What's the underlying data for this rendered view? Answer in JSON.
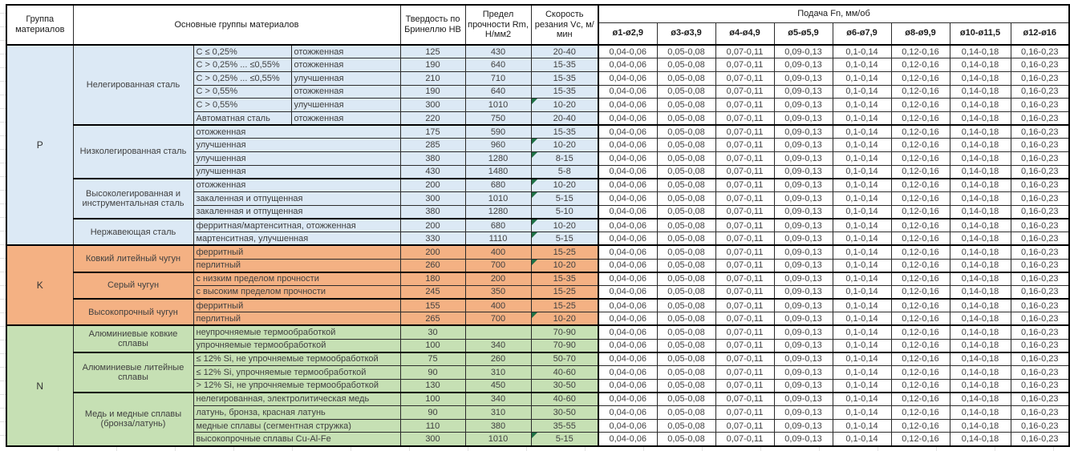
{
  "colors": {
    "group_p": "#dce9f5",
    "group_k": "#f4b183",
    "group_n": "#c6e0b4",
    "note_marker": "#1e7145"
  },
  "table": {
    "header": {
      "group": "Группа материалов",
      "materials": "Основные группы материалов",
      "hardness": "Твердость по Бринеллю HB",
      "strength": "Предел прочности Rm, Н/мм2",
      "speed": "Скорость резания Vc, м/мин",
      "feed": "Подача Fn, мм/об",
      "feed_cols": [
        "ø1-ø2,9",
        "ø3-ø3,9",
        "ø4-ø4,9",
        "ø5-ø5,9",
        "ø6-ø7,9",
        "ø8-ø9,9",
        "ø10-ø11,5",
        "ø12-ø16"
      ]
    },
    "feed_values": [
      "0,04-0,06",
      "0,05-0,08",
      "0,07-0,11",
      "0,09-0,13",
      "0,1-0,14",
      "0,12-0,16",
      "0,14-0,18",
      "0,16-0,23"
    ],
    "groups": [
      {
        "letter": "P",
        "color": "#dce9f5",
        "families": [
          {
            "name": "Нелегированная сталь",
            "rows": [
              {
                "spec": "C ≤ 0,25%",
                "state": "отожженная",
                "hb": "125",
                "rm": "430",
                "vc": "20-40",
                "note": false
              },
              {
                "spec": "C > 0,25% ... ≤0,55%",
                "state": "отожженная",
                "hb": "190",
                "rm": "640",
                "vc": "15-35",
                "note": false
              },
              {
                "spec": "C > 0,25% ... ≤0,55%",
                "state": "улучшенная",
                "hb": "210",
                "rm": "710",
                "vc": "15-35",
                "note": false
              },
              {
                "spec": "C > 0,55%",
                "state": "отожженная",
                "hb": "190",
                "rm": "640",
                "vc": "15-35",
                "note": false
              },
              {
                "spec": "C > 0,55%",
                "state": "улучшенная",
                "hb": "300",
                "rm": "1010",
                "vc": "10-20",
                "note": true
              },
              {
                "spec": "Автоматная сталь",
                "state": "отожженная",
                "hb": "220",
                "rm": "750",
                "vc": "20-40",
                "note": false
              }
            ]
          },
          {
            "name": "Низколегированная сталь",
            "rows": [
              {
                "spec": "отожженная",
                "hb": "175",
                "rm": "590",
                "vc": "15-35",
                "note": false
              },
              {
                "spec": "улучшенная",
                "hb": "285",
                "rm": "960",
                "vc": "10-20",
                "note": true
              },
              {
                "spec": "улучшенная",
                "hb": "380",
                "rm": "1280",
                "vc": "8-15",
                "note": true
              },
              {
                "spec": "улучшенная",
                "hb": "430",
                "rm": "1480",
                "vc": "5-8",
                "note": false
              }
            ]
          },
          {
            "name": "Высоколегированная и инструментальная сталь",
            "rows": [
              {
                "spec": "отожженная",
                "hb": "200",
                "rm": "680",
                "vc": "10-20",
                "note": true
              },
              {
                "spec": "закаленная и отпущенная",
                "hb": "300",
                "rm": "1010",
                "vc": "5-15",
                "note": true
              },
              {
                "spec": "закаленная и отпущенная",
                "hb": "380",
                "rm": "1280",
                "vc": "5-10",
                "note": false
              }
            ]
          },
          {
            "name": "Нержавеющая сталь",
            "rows": [
              {
                "spec": "ферритная/мартенситная, отожженная",
                "hb": "200",
                "rm": "680",
                "vc": "10-20",
                "note": true
              },
              {
                "spec": "мартенситная, улучшенная",
                "hb": "330",
                "rm": "1110",
                "vc": "5-15",
                "note": true
              }
            ]
          }
        ]
      },
      {
        "letter": "K",
        "color": "#f4b183",
        "families": [
          {
            "name": "Ковкий литейный чугун",
            "rows": [
              {
                "spec": "ферритный",
                "hb": "200",
                "rm": "400",
                "vc": "15-25",
                "note": false
              },
              {
                "spec": "перлитный",
                "hb": "260",
                "rm": "700",
                "vc": "10-20",
                "note": true
              }
            ]
          },
          {
            "name": "Серый чугун",
            "rows": [
              {
                "spec": "с низким пределом прочности",
                "hb": "180",
                "rm": "200",
                "vc": "15-35",
                "note": false
              },
              {
                "spec": "с высоким пределом прочности",
                "hb": "245",
                "rm": "350",
                "vc": "15-25",
                "note": false
              }
            ]
          },
          {
            "name": "Высокопрочный чугун",
            "rows": [
              {
                "spec": "ферритный",
                "hb": "155",
                "rm": "400",
                "vc": "15-25",
                "note": false
              },
              {
                "spec": "перлитный",
                "hb": "265",
                "rm": "700",
                "vc": "10-20",
                "note": true
              }
            ]
          }
        ]
      },
      {
        "letter": "N",
        "color": "#c6e0b4",
        "families": [
          {
            "name": "Алюминиевые ковкие сплавы",
            "rows": [
              {
                "spec": "неупрочняемые термообработкой",
                "hb": "30",
                "rm": "",
                "vc": "70-90",
                "note": false
              },
              {
                "spec": "упрочняемые термообработкой",
                "hb": "100",
                "rm": "340",
                "vc": "70-90",
                "note": false
              }
            ]
          },
          {
            "name": "Алюминиевые литейные сплавы",
            "rows": [
              {
                "spec": "≤ 12% Si, не упрочняемые термообработкой",
                "hb": "75",
                "rm": "260",
                "vc": "50-70",
                "note": false
              },
              {
                "spec": "≤ 12% Si, упрочняемые термообработкой",
                "hb": "90",
                "rm": "310",
                "vc": "40-60",
                "note": false
              },
              {
                "spec": "> 12% Si, не упрочняемые термообработкой",
                "hb": "130",
                "rm": "450",
                "vc": "30-50",
                "note": false
              }
            ]
          },
          {
            "name": "Медь и медные сплавы (бронза/латунь)",
            "rows": [
              {
                "spec": "нелегированная, электролитическая медь",
                "hb": "100",
                "rm": "340",
                "vc": "40-60",
                "note": false
              },
              {
                "spec": "латунь, бронза, красная латунь",
                "hb": "90",
                "rm": "310",
                "vc": "30-50",
                "note": false
              },
              {
                "spec": "медные сплавы (сегментная стружка)",
                "hb": "110",
                "rm": "380",
                "vc": "35-55",
                "note": false
              },
              {
                "spec": "высокопрочные сплавы Cu-Al-Fe",
                "hb": "300",
                "rm": "1010",
                "vc": "5-15",
                "note": true
              }
            ]
          }
        ]
      }
    ]
  }
}
